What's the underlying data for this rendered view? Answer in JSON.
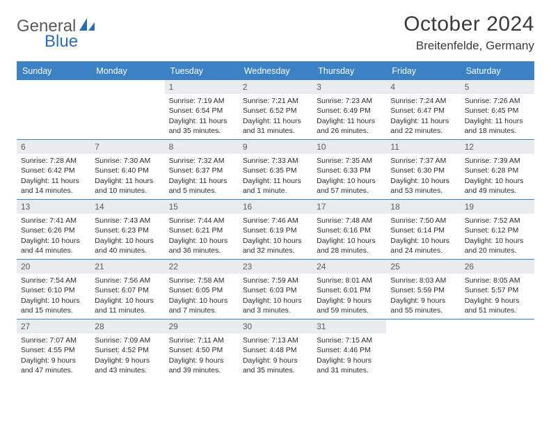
{
  "brand": {
    "part1": "General",
    "part2": "Blue"
  },
  "title": "October 2024",
  "location": "Breitenfelde, Germany",
  "colors": {
    "header_bg": "#3b82c4",
    "header_text": "#ffffff",
    "daynum_bg": "#e9ebed",
    "daynum_text": "#5a5a5a",
    "body_text": "#2b2b2b",
    "rule": "#3b82c4",
    "logo_gray": "#5a5a5a",
    "logo_blue": "#2a6db5"
  },
  "typography": {
    "title_fontsize": 30,
    "location_fontsize": 17,
    "weekday_fontsize": 12.5,
    "daynum_fontsize": 12,
    "cell_fontsize": 10.5
  },
  "weekdays": [
    "Sunday",
    "Monday",
    "Tuesday",
    "Wednesday",
    "Thursday",
    "Friday",
    "Saturday"
  ],
  "weeks": [
    [
      null,
      null,
      {
        "n": "1",
        "sr": "7:19 AM",
        "ss": "6:54 PM",
        "dl": "11 hours and 35 minutes."
      },
      {
        "n": "2",
        "sr": "7:21 AM",
        "ss": "6:52 PM",
        "dl": "11 hours and 31 minutes."
      },
      {
        "n": "3",
        "sr": "7:23 AM",
        "ss": "6:49 PM",
        "dl": "11 hours and 26 minutes."
      },
      {
        "n": "4",
        "sr": "7:24 AM",
        "ss": "6:47 PM",
        "dl": "11 hours and 22 minutes."
      },
      {
        "n": "5",
        "sr": "7:26 AM",
        "ss": "6:45 PM",
        "dl": "11 hours and 18 minutes."
      }
    ],
    [
      {
        "n": "6",
        "sr": "7:28 AM",
        "ss": "6:42 PM",
        "dl": "11 hours and 14 minutes."
      },
      {
        "n": "7",
        "sr": "7:30 AM",
        "ss": "6:40 PM",
        "dl": "11 hours and 10 minutes."
      },
      {
        "n": "8",
        "sr": "7:32 AM",
        "ss": "6:37 PM",
        "dl": "11 hours and 5 minutes."
      },
      {
        "n": "9",
        "sr": "7:33 AM",
        "ss": "6:35 PM",
        "dl": "11 hours and 1 minute."
      },
      {
        "n": "10",
        "sr": "7:35 AM",
        "ss": "6:33 PM",
        "dl": "10 hours and 57 minutes."
      },
      {
        "n": "11",
        "sr": "7:37 AM",
        "ss": "6:30 PM",
        "dl": "10 hours and 53 minutes."
      },
      {
        "n": "12",
        "sr": "7:39 AM",
        "ss": "6:28 PM",
        "dl": "10 hours and 49 minutes."
      }
    ],
    [
      {
        "n": "13",
        "sr": "7:41 AM",
        "ss": "6:26 PM",
        "dl": "10 hours and 44 minutes."
      },
      {
        "n": "14",
        "sr": "7:43 AM",
        "ss": "6:23 PM",
        "dl": "10 hours and 40 minutes."
      },
      {
        "n": "15",
        "sr": "7:44 AM",
        "ss": "6:21 PM",
        "dl": "10 hours and 36 minutes."
      },
      {
        "n": "16",
        "sr": "7:46 AM",
        "ss": "6:19 PM",
        "dl": "10 hours and 32 minutes."
      },
      {
        "n": "17",
        "sr": "7:48 AM",
        "ss": "6:16 PM",
        "dl": "10 hours and 28 minutes."
      },
      {
        "n": "18",
        "sr": "7:50 AM",
        "ss": "6:14 PM",
        "dl": "10 hours and 24 minutes."
      },
      {
        "n": "19",
        "sr": "7:52 AM",
        "ss": "6:12 PM",
        "dl": "10 hours and 20 minutes."
      }
    ],
    [
      {
        "n": "20",
        "sr": "7:54 AM",
        "ss": "6:10 PM",
        "dl": "10 hours and 15 minutes."
      },
      {
        "n": "21",
        "sr": "7:56 AM",
        "ss": "6:07 PM",
        "dl": "10 hours and 11 minutes."
      },
      {
        "n": "22",
        "sr": "7:58 AM",
        "ss": "6:05 PM",
        "dl": "10 hours and 7 minutes."
      },
      {
        "n": "23",
        "sr": "7:59 AM",
        "ss": "6:03 PM",
        "dl": "10 hours and 3 minutes."
      },
      {
        "n": "24",
        "sr": "8:01 AM",
        "ss": "6:01 PM",
        "dl": "9 hours and 59 minutes."
      },
      {
        "n": "25",
        "sr": "8:03 AM",
        "ss": "5:59 PM",
        "dl": "9 hours and 55 minutes."
      },
      {
        "n": "26",
        "sr": "8:05 AM",
        "ss": "5:57 PM",
        "dl": "9 hours and 51 minutes."
      }
    ],
    [
      {
        "n": "27",
        "sr": "7:07 AM",
        "ss": "4:55 PM",
        "dl": "9 hours and 47 minutes."
      },
      {
        "n": "28",
        "sr": "7:09 AM",
        "ss": "4:52 PM",
        "dl": "9 hours and 43 minutes."
      },
      {
        "n": "29",
        "sr": "7:11 AM",
        "ss": "4:50 PM",
        "dl": "9 hours and 39 minutes."
      },
      {
        "n": "30",
        "sr": "7:13 AM",
        "ss": "4:48 PM",
        "dl": "9 hours and 35 minutes."
      },
      {
        "n": "31",
        "sr": "7:15 AM",
        "ss": "4:46 PM",
        "dl": "9 hours and 31 minutes."
      },
      null,
      null
    ]
  ],
  "labels": {
    "sunrise": "Sunrise:",
    "sunset": "Sunset:",
    "daylight": "Daylight:"
  }
}
